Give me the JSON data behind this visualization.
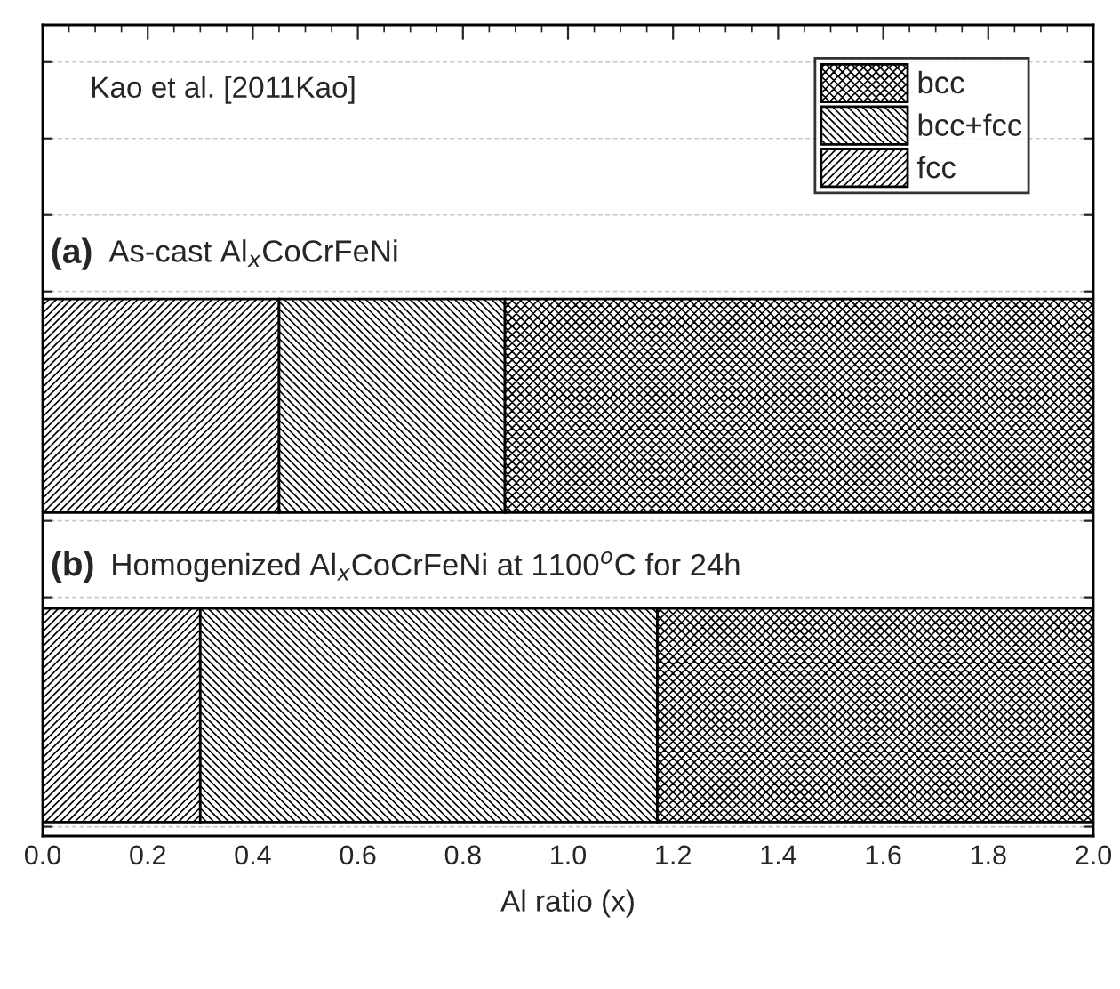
{
  "chart_data": {
    "type": "bar",
    "orientation": "horizontal",
    "stacked": true,
    "categories": [
      null,
      null
    ],
    "series": [
      {
        "name": "fcc",
        "color": "#000000",
        "values": [
          0.45,
          0.3
        ]
      },
      {
        "name": "bcc+fcc",
        "color": "#000000",
        "values": [
          0.43,
          0.87
        ]
      },
      {
        "name": "bcc",
        "color": "#000000",
        "values": [
          1.12,
          0.83
        ]
      }
    ],
    "xlabel": "Al ratio (x)",
    "xlim": [
      0.0,
      2.0
    ],
    "xticks": [
      {
        "value": 0.0,
        "label": "0.0"
      },
      0.2,
      0.4,
      0.6,
      0.8,
      {
        "value": 1.0,
        "label": "1.0"
      },
      1.2,
      1.4,
      1.6,
      1.8,
      {
        "value": 2.0,
        "label": "2.0"
      }
    ],
    "annotations": [
      "Kao et al. [2011Kao]",
      "(a)",
      "As-cast Al$_{x}$CoCrFeNi",
      "(b)",
      "Homogenized Al$_{x}$CoCrFeNi at 1100$^{o}$C for 24h"
    ],
    "legend": "top right",
    "grid": "y",
    "tick_labels": "x"
  }
}
